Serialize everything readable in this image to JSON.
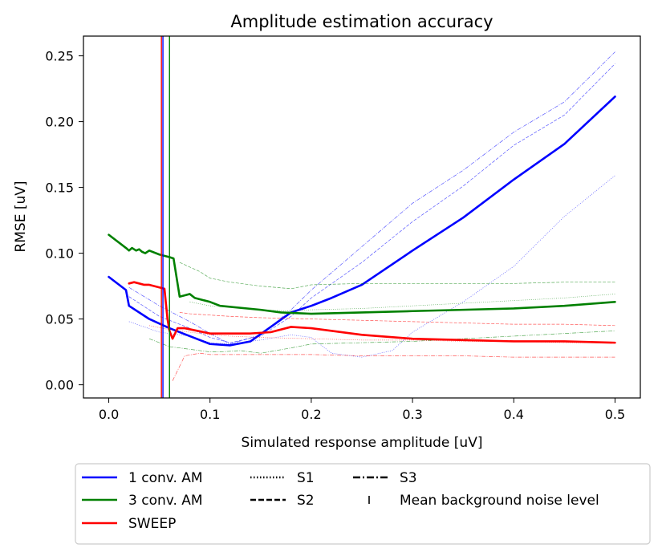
{
  "chart_data": {
    "type": "line",
    "title": "Amplitude estimation accuracy",
    "xlabel": "Simulated response amplitude [uV]",
    "ylabel": "RMSE [uV]",
    "xlim": [
      -0.025,
      0.525
    ],
    "ylim": [
      -0.01,
      0.265
    ],
    "xticks": [
      0.0,
      0.1,
      0.2,
      0.3,
      0.4,
      0.5
    ],
    "xtick_labels": [
      "0.0",
      "0.1",
      "0.2",
      "0.3",
      "0.4",
      "0.5"
    ],
    "yticks": [
      0.0,
      0.05,
      0.1,
      0.15,
      0.2,
      0.25
    ],
    "ytick_labels": [
      "0.00",
      "0.05",
      "0.10",
      "0.15",
      "0.20",
      "0.25"
    ],
    "grid": false,
    "legend_placement": "below-plot",
    "series": [
      {
        "name": "1 conv. AM",
        "color": "#0000ff",
        "style": "solid",
        "x": [
          0.0,
          0.017,
          0.02,
          0.04,
          0.06,
          0.08,
          0.1,
          0.12,
          0.14,
          0.16,
          0.18,
          0.2,
          0.22,
          0.25,
          0.3,
          0.35,
          0.4,
          0.45,
          0.5
        ],
        "y": [
          0.082,
          0.072,
          0.06,
          0.05,
          0.043,
          0.037,
          0.031,
          0.03,
          0.033,
          0.044,
          0.055,
          0.06,
          0.066,
          0.076,
          0.102,
          0.127,
          0.156,
          0.183,
          0.219
        ]
      },
      {
        "name": "1 conv. AM S1",
        "color": "#0000ff",
        "style": "dotted",
        "x": [
          0.02,
          0.05,
          0.08,
          0.1,
          0.12,
          0.15,
          0.18,
          0.2,
          0.22,
          0.25,
          0.28,
          0.3,
          0.35,
          0.4,
          0.45,
          0.5
        ],
        "y": [
          0.048,
          0.04,
          0.037,
          0.032,
          0.031,
          0.034,
          0.038,
          0.036,
          0.024,
          0.021,
          0.026,
          0.04,
          0.063,
          0.09,
          0.128,
          0.159
        ]
      },
      {
        "name": "1 conv. AM S2",
        "color": "#0000ff",
        "style": "dashed",
        "x": [
          0.02,
          0.05,
          0.08,
          0.1,
          0.12,
          0.15,
          0.18,
          0.2,
          0.25,
          0.3,
          0.35,
          0.4,
          0.45,
          0.5
        ],
        "y": [
          0.067,
          0.052,
          0.043,
          0.036,
          0.032,
          0.037,
          0.052,
          0.066,
          0.093,
          0.124,
          0.151,
          0.182,
          0.205,
          0.244
        ]
      },
      {
        "name": "1 conv. AM S3",
        "color": "#0000ff",
        "style": "dashdot",
        "x": [
          0.02,
          0.05,
          0.08,
          0.1,
          0.12,
          0.15,
          0.18,
          0.2,
          0.25,
          0.3,
          0.35,
          0.4,
          0.45,
          0.5
        ],
        "y": [
          0.074,
          0.06,
          0.048,
          0.039,
          0.031,
          0.038,
          0.057,
          0.072,
          0.105,
          0.138,
          0.163,
          0.192,
          0.215,
          0.253
        ]
      },
      {
        "name": "3 conv. AM",
        "color": "#008000",
        "style": "solid",
        "x": [
          0.0,
          0.017,
          0.02,
          0.023,
          0.027,
          0.03,
          0.033,
          0.036,
          0.04,
          0.05,
          0.06,
          0.064,
          0.07,
          0.075,
          0.08,
          0.085,
          0.09,
          0.1,
          0.11,
          0.15,
          0.17,
          0.2,
          0.25,
          0.3,
          0.35,
          0.4,
          0.45,
          0.5
        ],
        "y": [
          0.114,
          0.104,
          0.102,
          0.104,
          0.102,
          0.103,
          0.101,
          0.1,
          0.102,
          0.099,
          0.097,
          0.096,
          0.067,
          0.068,
          0.069,
          0.066,
          0.065,
          0.063,
          0.06,
          0.057,
          0.055,
          0.054,
          0.055,
          0.056,
          0.057,
          0.058,
          0.06,
          0.063
        ]
      },
      {
        "name": "3 conv. AM S1",
        "color": "#008000",
        "style": "dotted",
        "x": [
          0.08,
          0.1,
          0.12,
          0.15,
          0.18,
          0.2,
          0.25,
          0.3,
          0.35,
          0.4,
          0.45,
          0.5
        ],
        "y": [
          0.063,
          0.06,
          0.059,
          0.057,
          0.056,
          0.057,
          0.058,
          0.06,
          0.062,
          0.064,
          0.066,
          0.069
        ]
      },
      {
        "name": "3 conv. AM S2",
        "color": "#008000",
        "style": "dashed",
        "x": [
          0.07,
          0.09,
          0.1,
          0.12,
          0.15,
          0.18,
          0.2,
          0.25,
          0.3,
          0.35,
          0.4,
          0.45,
          0.5
        ],
        "y": [
          0.093,
          0.086,
          0.081,
          0.078,
          0.075,
          0.073,
          0.076,
          0.077,
          0.077,
          0.077,
          0.077,
          0.078,
          0.078
        ]
      },
      {
        "name": "3 conv. AM S3",
        "color": "#008000",
        "style": "dashdot",
        "x": [
          0.04,
          0.06,
          0.08,
          0.1,
          0.11,
          0.13,
          0.15,
          0.18,
          0.2,
          0.25,
          0.3,
          0.35,
          0.4,
          0.45,
          0.5
        ],
        "y": [
          0.035,
          0.029,
          0.027,
          0.025,
          0.025,
          0.026,
          0.024,
          0.028,
          0.031,
          0.032,
          0.033,
          0.035,
          0.037,
          0.039,
          0.041
        ]
      },
      {
        "name": "SWEEP",
        "color": "#ff0000",
        "style": "solid",
        "x": [
          0.02,
          0.025,
          0.03,
          0.035,
          0.04,
          0.045,
          0.05,
          0.055,
          0.058,
          0.06,
          0.063,
          0.068,
          0.075,
          0.1,
          0.14,
          0.16,
          0.18,
          0.2,
          0.25,
          0.3,
          0.35,
          0.4,
          0.45,
          0.5
        ],
        "y": [
          0.077,
          0.078,
          0.077,
          0.076,
          0.076,
          0.075,
          0.074,
          0.073,
          0.05,
          0.041,
          0.035,
          0.043,
          0.043,
          0.039,
          0.039,
          0.04,
          0.044,
          0.043,
          0.038,
          0.035,
          0.034,
          0.033,
          0.033,
          0.032
        ]
      },
      {
        "name": "SWEEP S1",
        "color": "#ff0000",
        "style": "dotted",
        "x": [
          0.04,
          0.06,
          0.08,
          0.1,
          0.12,
          0.15,
          0.2,
          0.25,
          0.3,
          0.35,
          0.4,
          0.45,
          0.5
        ],
        "y": [
          0.045,
          0.042,
          0.04,
          0.038,
          0.037,
          0.036,
          0.035,
          0.034,
          0.034,
          0.033,
          0.033,
          0.032,
          0.032
        ]
      },
      {
        "name": "SWEEP S2",
        "color": "#ff0000",
        "style": "dashed",
        "x": [
          0.07,
          0.08,
          0.1,
          0.12,
          0.15,
          0.2,
          0.25,
          0.3,
          0.35,
          0.4,
          0.45,
          0.5
        ],
        "y": [
          0.055,
          0.054,
          0.053,
          0.052,
          0.051,
          0.05,
          0.049,
          0.048,
          0.047,
          0.046,
          0.046,
          0.045
        ]
      },
      {
        "name": "SWEEP S3",
        "color": "#ff0000",
        "style": "dashdot",
        "x": [
          0.063,
          0.075,
          0.09,
          0.1,
          0.12,
          0.15,
          0.2,
          0.25,
          0.3,
          0.35,
          0.4,
          0.45,
          0.5
        ],
        "y": [
          0.003,
          0.022,
          0.024,
          0.023,
          0.023,
          0.023,
          0.023,
          0.022,
          0.022,
          0.022,
          0.021,
          0.021,
          0.021
        ]
      }
    ],
    "noise_levels": [
      {
        "color": "#ff0000",
        "x": 0.052
      },
      {
        "color": "#0000ff",
        "x": 0.0535
      },
      {
        "color": "#008000",
        "x": 0.06
      }
    ],
    "legend": {
      "items": [
        {
          "label": "1 conv. AM",
          "color": "#0000ff",
          "style": "solid"
        },
        {
          "label": "3 conv. AM",
          "color": "#008000",
          "style": "solid"
        },
        {
          "label": "SWEEP",
          "color": "#ff0000",
          "style": "solid"
        },
        {
          "label": "S1",
          "color": "#000000",
          "style": "dotted"
        },
        {
          "label": "S2",
          "color": "#000000",
          "style": "dashed"
        },
        {
          "label": "S3",
          "color": "#000000",
          "style": "dashdot"
        },
        {
          "label": "Mean background noise level",
          "color": "#000000",
          "style": "vline"
        }
      ]
    }
  }
}
